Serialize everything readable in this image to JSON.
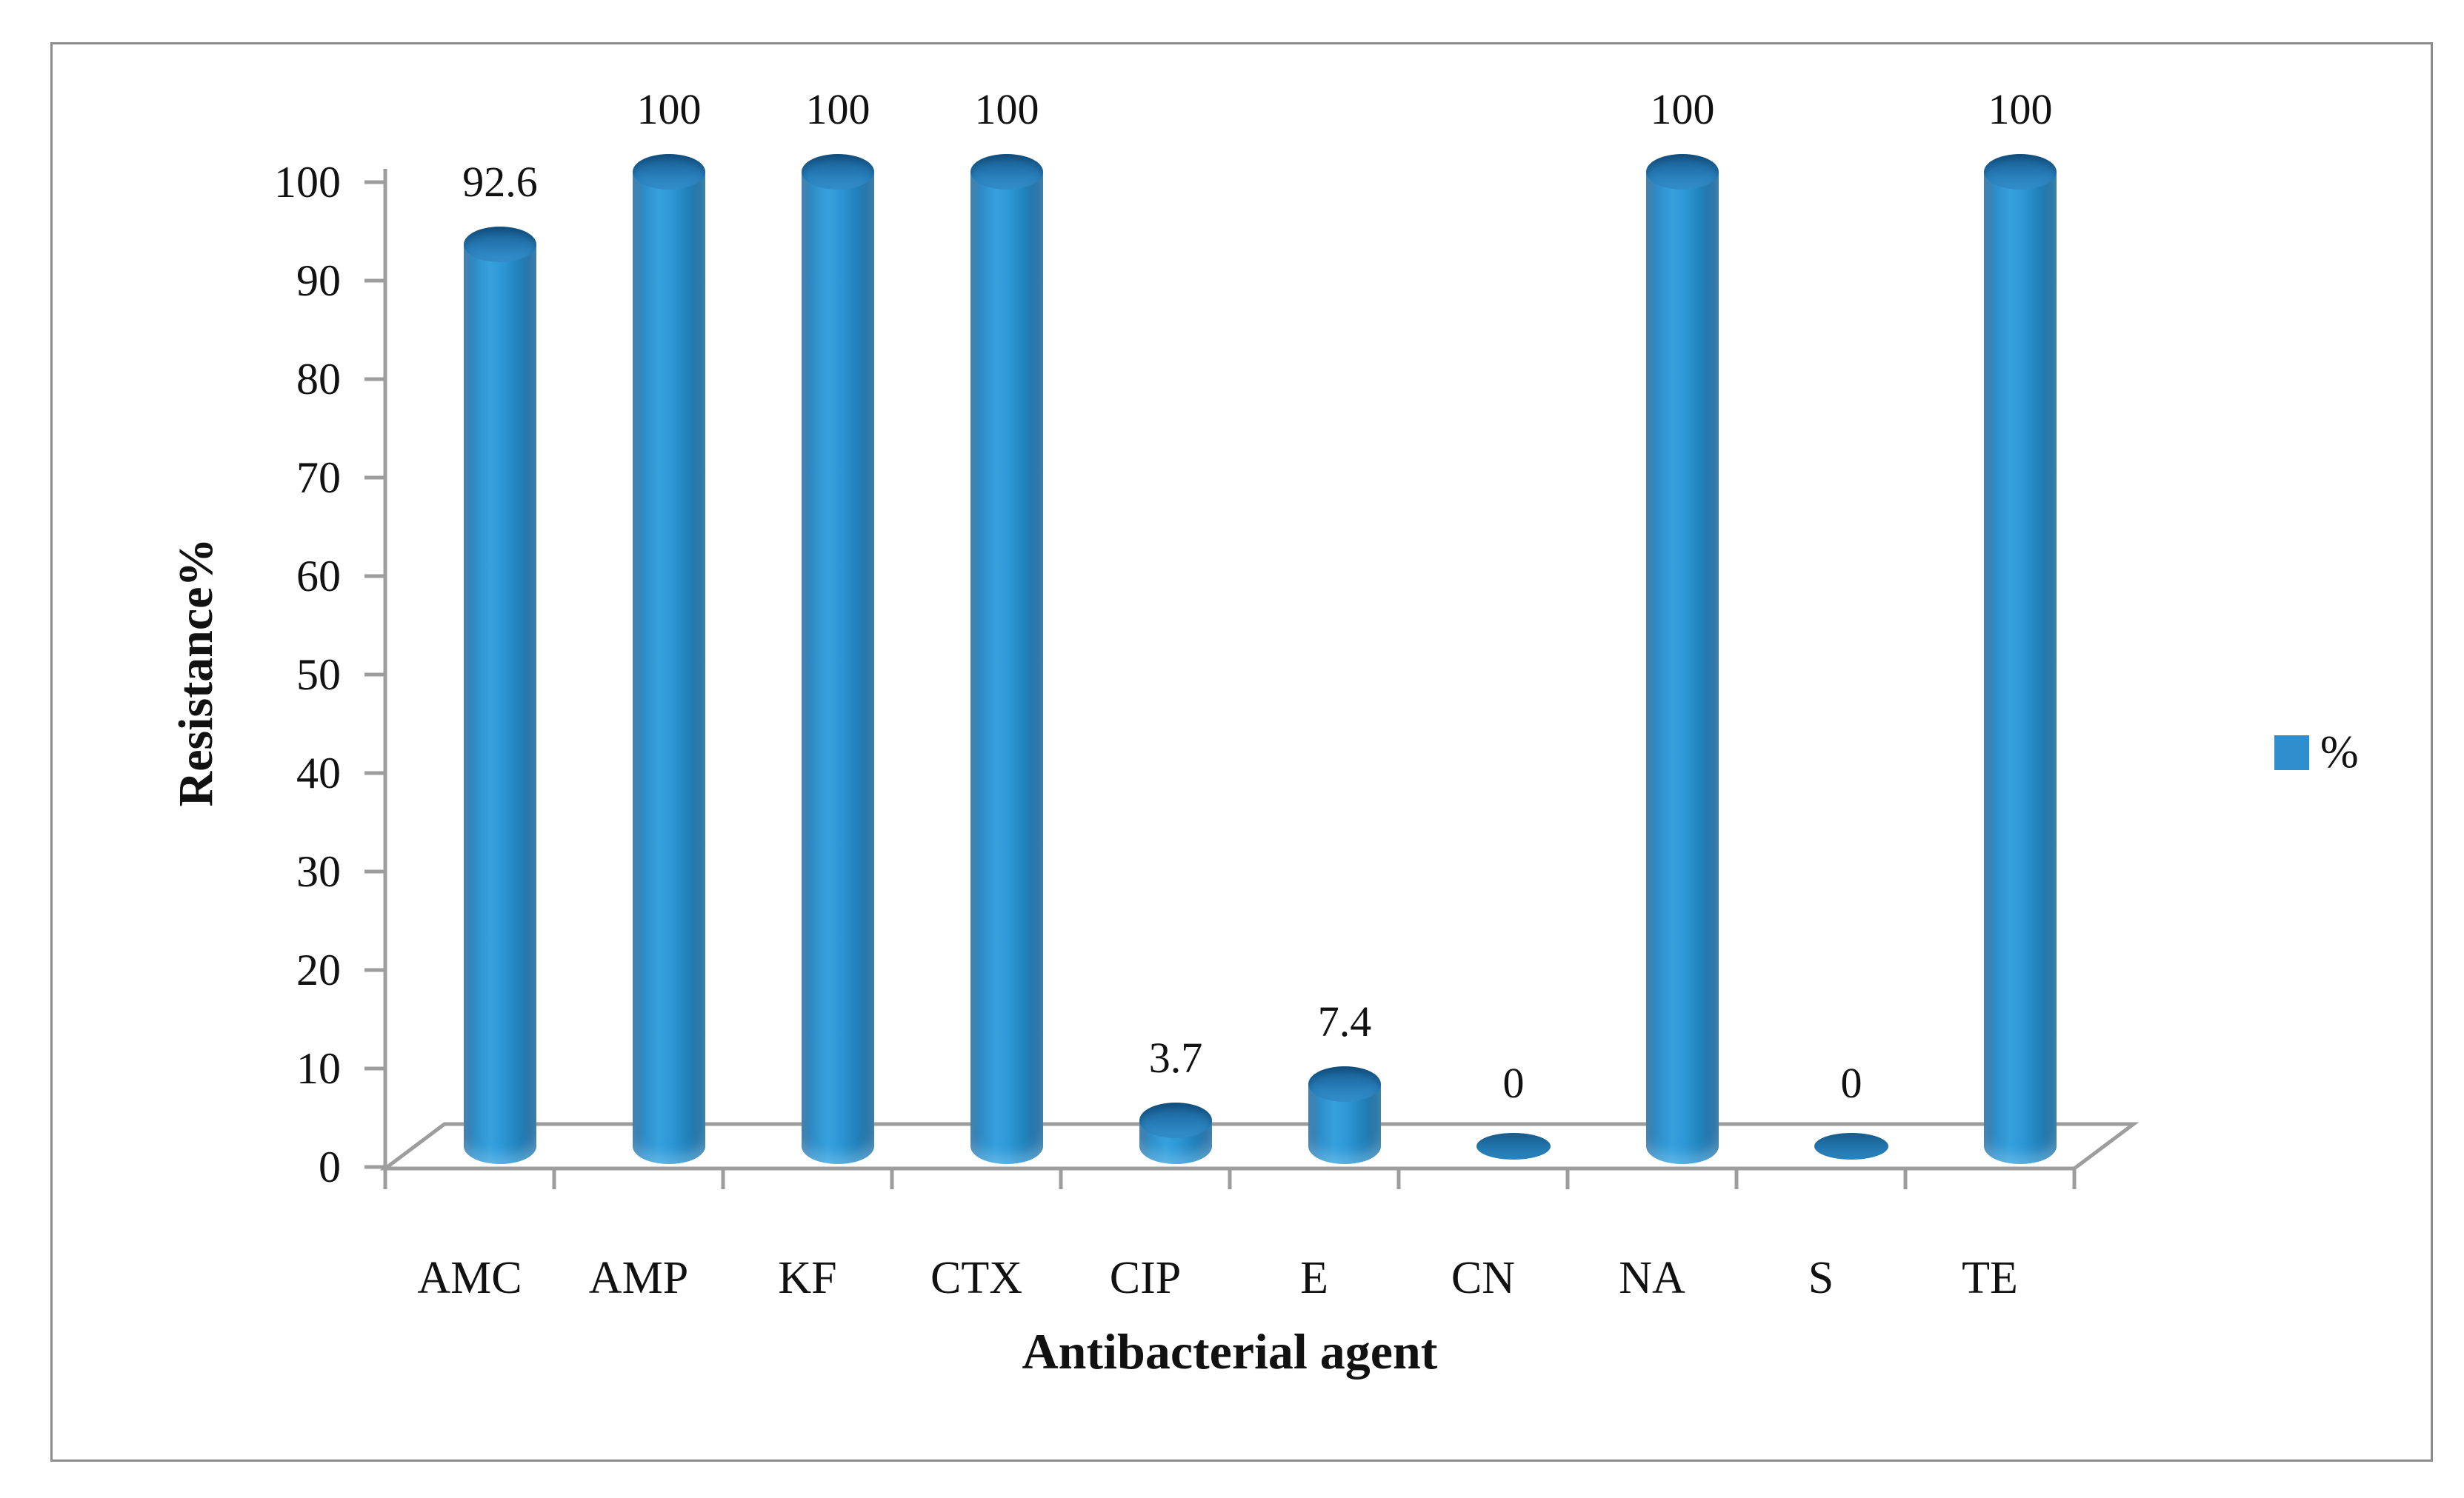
{
  "chart_data": {
    "type": "bar",
    "style": "3d-cylinder",
    "categories": [
      "AMC",
      "AMP",
      "KF",
      "CTX",
      "CIP",
      "E",
      "CN",
      "NA",
      "S",
      "TE"
    ],
    "series": [
      {
        "name": "%",
        "values": [
          92.6,
          100,
          100,
          100,
          3.7,
          7.4,
          0,
          100,
          0,
          100
        ]
      }
    ],
    "data_labels": [
      "92.6",
      "100",
      "100",
      "100",
      "3.7",
      "7.4",
      "0",
      "100",
      "0",
      "100"
    ],
    "title": "",
    "xlabel": "Antibacterial agent",
    "ylabel": "Resistance%",
    "ylim": [
      0,
      100
    ],
    "ytick_interval": 10,
    "ytick_labels": [
      "0",
      "10",
      "20",
      "30",
      "40",
      "50",
      "60",
      "70",
      "80",
      "90",
      "100"
    ],
    "grid": false,
    "legend": {
      "position": "right",
      "entries": [
        {
          "label": "%",
          "swatch_color": "#2f8fcc"
        }
      ]
    }
  },
  "colors": {
    "bar_main": "#2e8ec9",
    "bar_top": "#1f6da5",
    "bar_zero": "#2176ad",
    "axis_gray": "#9d9d9d",
    "frame_gray": "#8d8d8d",
    "text": "#1a1a1a"
  }
}
